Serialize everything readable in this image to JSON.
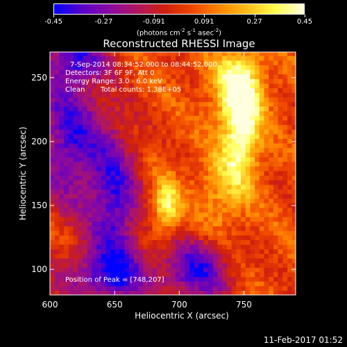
{
  "colors": {
    "scale": [
      "#0000ff",
      "#5a00c8",
      "#8a0aa0",
      "#b01660",
      "#d0200c",
      "#f04800",
      "#ff8800",
      "#ffc01a",
      "#ffff50",
      "#ffffe0"
    ],
    "background_min": "#40107a"
  },
  "colorbar": {
    "ticks": [
      "-0.45",
      "-0.27",
      "-0.091",
      "0.091",
      "0.27",
      "0.45"
    ],
    "units": "(photons cm",
    "units_exp1": "-2",
    "units_mid": " s",
    "units_exp2": "-1",
    "units_mid2": " asec",
    "units_exp3": "-2",
    "units_end": ")"
  },
  "chart_data": {
    "type": "heatmap",
    "title": "Reconstructed RHESSI Image",
    "xlabel": "Heliocentric X (arcsec)",
    "ylabel": "Heliocentric Y (arcsec)",
    "xlim": [
      600,
      790
    ],
    "ylim": [
      80,
      270
    ],
    "xticks": [
      "600",
      "650",
      "700",
      "750"
    ],
    "xtick_values": [
      600,
      650,
      700,
      750
    ],
    "yticks": [
      "100",
      "150",
      "200",
      "250"
    ],
    "ytick_values": [
      100,
      150,
      200,
      250
    ],
    "value_range": [
      -0.45,
      0.45
    ],
    "peak_position": [
      748,
      207
    ],
    "annotations": {
      "time": "7-Sep-2014 08:34:52.000 to 08:44:52.000",
      "detectors": "Detectors: 3F 6F 9F, Att 0",
      "energy": "Energy Range: 3.0 - 6.0 keV",
      "method": "Clean",
      "counts": "Total counts: 1.38E+05",
      "peak": "Position of Peak = [748,207]"
    }
  },
  "footer": {
    "timestamp": "11-Feb-2017 01:52"
  }
}
